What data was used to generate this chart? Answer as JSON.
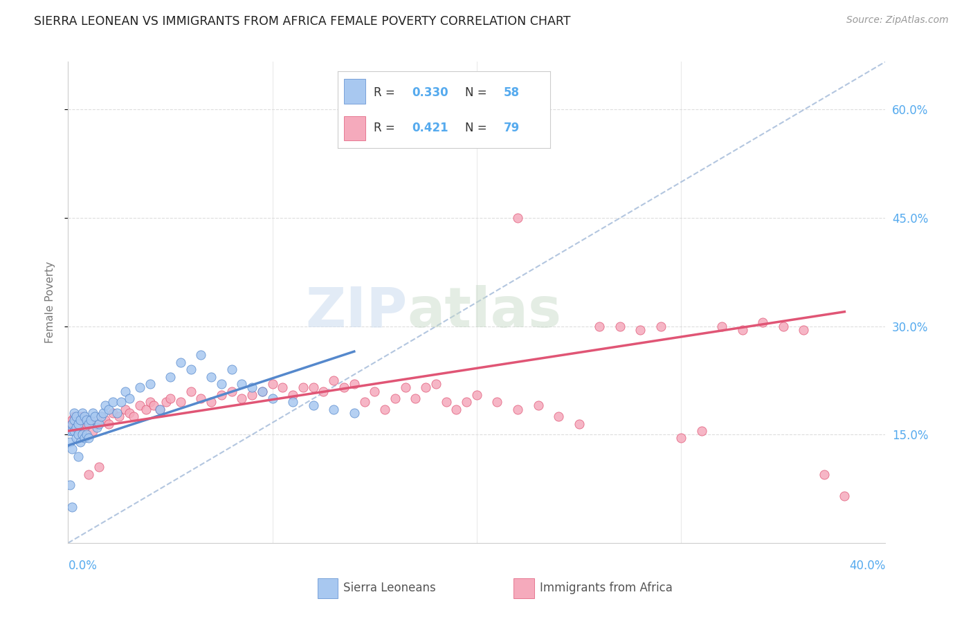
{
  "title": "SIERRA LEONEAN VS IMMIGRANTS FROM AFRICA FEMALE POVERTY CORRELATION CHART",
  "source": "Source: ZipAtlas.com",
  "ylabel": "Female Poverty",
  "color_blue": "#A8C8F0",
  "color_blue_line": "#5588CC",
  "color_pink": "#F5AABC",
  "color_pink_line": "#E05575",
  "color_diag": "#A0B8D8",
  "background_color": "#FFFFFF",
  "grid_color": "#DDDDDD",
  "xmin": 0.0,
  "xmax": 0.4,
  "ymin": 0.0,
  "ymax": 0.666,
  "ytick_vals": [
    0.15,
    0.3,
    0.45,
    0.6
  ],
  "ytick_labels": [
    "15.0%",
    "30.0%",
    "45.0%",
    "60.0%"
  ],
  "tick_color": "#55AAEE",
  "sierra_x": [
    0.001,
    0.001,
    0.002,
    0.002,
    0.002,
    0.003,
    0.003,
    0.003,
    0.004,
    0.004,
    0.004,
    0.005,
    0.005,
    0.005,
    0.006,
    0.006,
    0.007,
    0.007,
    0.008,
    0.008,
    0.009,
    0.009,
    0.01,
    0.01,
    0.011,
    0.012,
    0.013,
    0.014,
    0.015,
    0.016,
    0.017,
    0.018,
    0.02,
    0.022,
    0.024,
    0.026,
    0.028,
    0.03,
    0.035,
    0.04,
    0.045,
    0.05,
    0.055,
    0.06,
    0.065,
    0.07,
    0.075,
    0.08,
    0.085,
    0.09,
    0.095,
    0.1,
    0.11,
    0.12,
    0.13,
    0.14,
    0.001,
    0.002
  ],
  "sierra_y": [
    0.14,
    0.155,
    0.13,
    0.155,
    0.165,
    0.155,
    0.17,
    0.18,
    0.145,
    0.16,
    0.175,
    0.12,
    0.15,
    0.165,
    0.14,
    0.17,
    0.15,
    0.18,
    0.145,
    0.175,
    0.15,
    0.17,
    0.145,
    0.165,
    0.17,
    0.18,
    0.175,
    0.16,
    0.165,
    0.175,
    0.18,
    0.19,
    0.185,
    0.195,
    0.18,
    0.195,
    0.21,
    0.2,
    0.215,
    0.22,
    0.185,
    0.23,
    0.25,
    0.24,
    0.26,
    0.23,
    0.22,
    0.24,
    0.22,
    0.215,
    0.21,
    0.2,
    0.195,
    0.19,
    0.185,
    0.18,
    0.08,
    0.05
  ],
  "africa_x": [
    0.001,
    0.002,
    0.003,
    0.004,
    0.005,
    0.006,
    0.007,
    0.008,
    0.009,
    0.01,
    0.012,
    0.014,
    0.016,
    0.018,
    0.02,
    0.022,
    0.025,
    0.028,
    0.03,
    0.032,
    0.035,
    0.038,
    0.04,
    0.042,
    0.045,
    0.048,
    0.05,
    0.055,
    0.06,
    0.065,
    0.07,
    0.075,
    0.08,
    0.085,
    0.09,
    0.095,
    0.1,
    0.105,
    0.11,
    0.115,
    0.12,
    0.125,
    0.13,
    0.135,
    0.14,
    0.145,
    0.15,
    0.155,
    0.16,
    0.165,
    0.17,
    0.175,
    0.18,
    0.185,
    0.19,
    0.195,
    0.2,
    0.21,
    0.22,
    0.23,
    0.24,
    0.25,
    0.26,
    0.27,
    0.28,
    0.29,
    0.3,
    0.31,
    0.32,
    0.33,
    0.34,
    0.35,
    0.36,
    0.37,
    0.38,
    0.005,
    0.01,
    0.015,
    0.22
  ],
  "africa_y": [
    0.165,
    0.17,
    0.175,
    0.16,
    0.155,
    0.17,
    0.175,
    0.16,
    0.165,
    0.17,
    0.155,
    0.165,
    0.175,
    0.17,
    0.165,
    0.18,
    0.175,
    0.185,
    0.18,
    0.175,
    0.19,
    0.185,
    0.195,
    0.19,
    0.185,
    0.195,
    0.2,
    0.195,
    0.21,
    0.2,
    0.195,
    0.205,
    0.21,
    0.2,
    0.205,
    0.21,
    0.22,
    0.215,
    0.205,
    0.215,
    0.215,
    0.21,
    0.225,
    0.215,
    0.22,
    0.195,
    0.21,
    0.185,
    0.2,
    0.215,
    0.2,
    0.215,
    0.22,
    0.195,
    0.185,
    0.195,
    0.205,
    0.195,
    0.185,
    0.19,
    0.175,
    0.165,
    0.3,
    0.3,
    0.295,
    0.3,
    0.145,
    0.155,
    0.3,
    0.295,
    0.305,
    0.3,
    0.295,
    0.095,
    0.065,
    0.175,
    0.095,
    0.105,
    0.45
  ],
  "blue_line_x": [
    0.0,
    0.14
  ],
  "blue_line_y": [
    0.135,
    0.265
  ],
  "pink_line_x": [
    0.0,
    0.38
  ],
  "pink_line_y": [
    0.155,
    0.32
  ],
  "diag_line_x": [
    0.0,
    0.4
  ],
  "diag_line_y": [
    0.0,
    0.666
  ]
}
